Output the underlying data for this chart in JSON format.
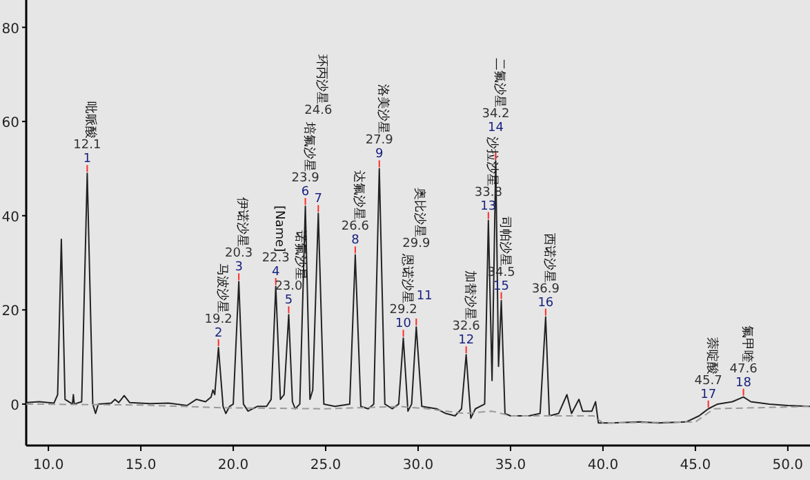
{
  "chart_data": {
    "type": "line",
    "xlim": [
      8.8,
      51.2
    ],
    "ylim": [
      -8.8,
      85.8
    ],
    "xticks": [
      {
        "value": 10,
        "label": "10.0"
      },
      {
        "value": 15,
        "label": "15.0"
      },
      {
        "value": 20,
        "label": "20.0"
      },
      {
        "value": 25,
        "label": "25.0"
      },
      {
        "value": 30,
        "label": "30.0"
      },
      {
        "value": 35,
        "label": "35.0"
      },
      {
        "value": 40,
        "label": "40.0"
      },
      {
        "value": 45,
        "label": "45.0"
      },
      {
        "value": 50,
        "label": "50.0"
      }
    ],
    "yticks": [
      0,
      20,
      40,
      60,
      80
    ],
    "grid": false,
    "marker": "none",
    "series": [
      {
        "color": "#222222",
        "line_style": "solid",
        "x": [
          8.8,
          9.5,
          10.3,
          10.5,
          10.7,
          10.9,
          11.3,
          11.35,
          11.4,
          11.8,
          12.1,
          12.4,
          12.55,
          12.7,
          13.4,
          13.6,
          13.8,
          14.1,
          14.4,
          15.5,
          16.5,
          17.5,
          18.0,
          18.5,
          18.8,
          18.9,
          19.0,
          19.2,
          19.45,
          19.6,
          19.8,
          20.0,
          20.3,
          20.55,
          20.8,
          21.3,
          21.8,
          22.05,
          22.3,
          22.55,
          22.75,
          23.0,
          23.2,
          23.35,
          23.6,
          23.9,
          24.15,
          24.3,
          24.6,
          24.9,
          25.5,
          26.3,
          26.6,
          26.9,
          27.3,
          27.6,
          27.9,
          28.2,
          28.6,
          28.95,
          29.2,
          29.45,
          29.65,
          29.9,
          30.2,
          31.0,
          31.5,
          32.0,
          32.35,
          32.6,
          32.85,
          33.1,
          33.6,
          33.8,
          34.0,
          34.2,
          34.35,
          34.5,
          34.7,
          35.0,
          36.0,
          36.6,
          36.9,
          37.1,
          37.6,
          38.05,
          38.3,
          38.7,
          38.9,
          39.4,
          39.6,
          39.75,
          40.5,
          42.0,
          43.0,
          44.5,
          45.2,
          45.7,
          46.2,
          47.0,
          47.6,
          48.0,
          49.0,
          50.0,
          51.2
        ],
        "values": [
          0.3,
          0.5,
          0.2,
          2,
          35,
          1,
          0,
          2,
          0,
          0.5,
          49,
          0,
          -2,
          0,
          0.2,
          1,
          0.3,
          1.8,
          0.3,
          0.1,
          0.2,
          -0.3,
          1,
          0.5,
          1.5,
          3,
          2,
          12,
          -0.5,
          -2,
          -0.5,
          0,
          26,
          0,
          -1.5,
          -0.5,
          -0.5,
          1,
          25,
          1,
          2,
          19,
          0.5,
          -1,
          0,
          42,
          1,
          3,
          40.5,
          0,
          -0.5,
          0,
          31.7,
          -0.5,
          -1,
          0,
          50,
          0,
          -1,
          0,
          14,
          -1.5,
          0,
          16.4,
          -0.5,
          -1,
          -2,
          -2.5,
          -1,
          10.5,
          -3,
          -1,
          0,
          39,
          5,
          51.6,
          8,
          22,
          -2,
          -2.5,
          -2.5,
          -2,
          18.5,
          -2.5,
          -2,
          2,
          -2,
          1,
          -1.5,
          -1.5,
          0.5,
          -4,
          -4,
          -3.8,
          -4,
          -3.8,
          -2.5,
          -1,
          0,
          0.5,
          1.5,
          0.5,
          0,
          -0.3,
          -0.5
        ]
      },
      {
        "color": "#999999",
        "line_style": "dashed",
        "x": [
          8.8,
          15.0,
          19.5,
          25.0,
          29.0,
          30.5,
          32.5,
          34.0,
          35.0,
          39.5,
          40.0,
          45.0,
          46.0,
          51.2
        ],
        "values": [
          0,
          -0.2,
          -0.8,
          -1,
          -0.5,
          -1,
          -2,
          -1.5,
          -2.5,
          -2.5,
          -4,
          -3.8,
          -1,
          -0.5
        ]
      }
    ],
    "annotations": [
      {
        "text": "1",
        "x": 12.1,
        "y": 49
      },
      "12.1",
      "吡哌酸",
      {
        "text": "2",
        "x": 19.2,
        "y": 12
      },
      "19.2",
      "马波沙星",
      {
        "text": "3",
        "x": 20.3,
        "y": 26
      },
      "20.3",
      "伊诺沙星",
      {
        "text": "4",
        "x": 22.3,
        "y": 25
      },
      "22.3",
      "[Name]",
      {
        "text": "5",
        "x": 23.0,
        "y": 19
      },
      "23.0",
      "诺氟沙星",
      {
        "text": "6",
        "x": 23.9,
        "y": 42
      },
      "23.9",
      "培氟沙星",
      {
        "text": "7",
        "x": 24.6,
        "y": 40.5
      },
      "24.6",
      "环丙沙星",
      {
        "text": "8",
        "x": 26.6,
        "y": 31.7
      },
      "26.6",
      "达氟沙星",
      {
        "text": "9",
        "x": 27.9,
        "y": 50
      },
      "27.9",
      "洛美沙星",
      {
        "text": "10",
        "x": 29.2,
        "y": 14
      },
      "29.2",
      "恩诺沙星",
      {
        "text": "11",
        "x": 29.9,
        "y": 16.4
      },
      "29.9",
      "奥比沙星",
      {
        "text": "12",
        "x": 32.6,
        "y": 10.5
      },
      "32.6",
      "加替沙星",
      {
        "text": "13",
        "x": 33.8,
        "y": 39
      },
      "33.8",
      "沙拉沙星",
      {
        "text": "14",
        "x": 34.2,
        "y": 51.6
      },
      "34.2",
      "二氟沙星",
      {
        "text": "15",
        "x": 34.5,
        "y": 22
      },
      "34.5",
      "司帕沙星",
      {
        "text": "16",
        "x": 36.9,
        "y": 18.5
      },
      "36.9",
      "西诺沙星",
      {
        "text": "17",
        "x": 45.7,
        "y": -1
      },
      "45.7",
      "萘啶酸",
      {
        "text": "18",
        "x": 47.6,
        "y": 1.5
      },
      "47.6",
      "氟甲喹"
    ]
  }
}
